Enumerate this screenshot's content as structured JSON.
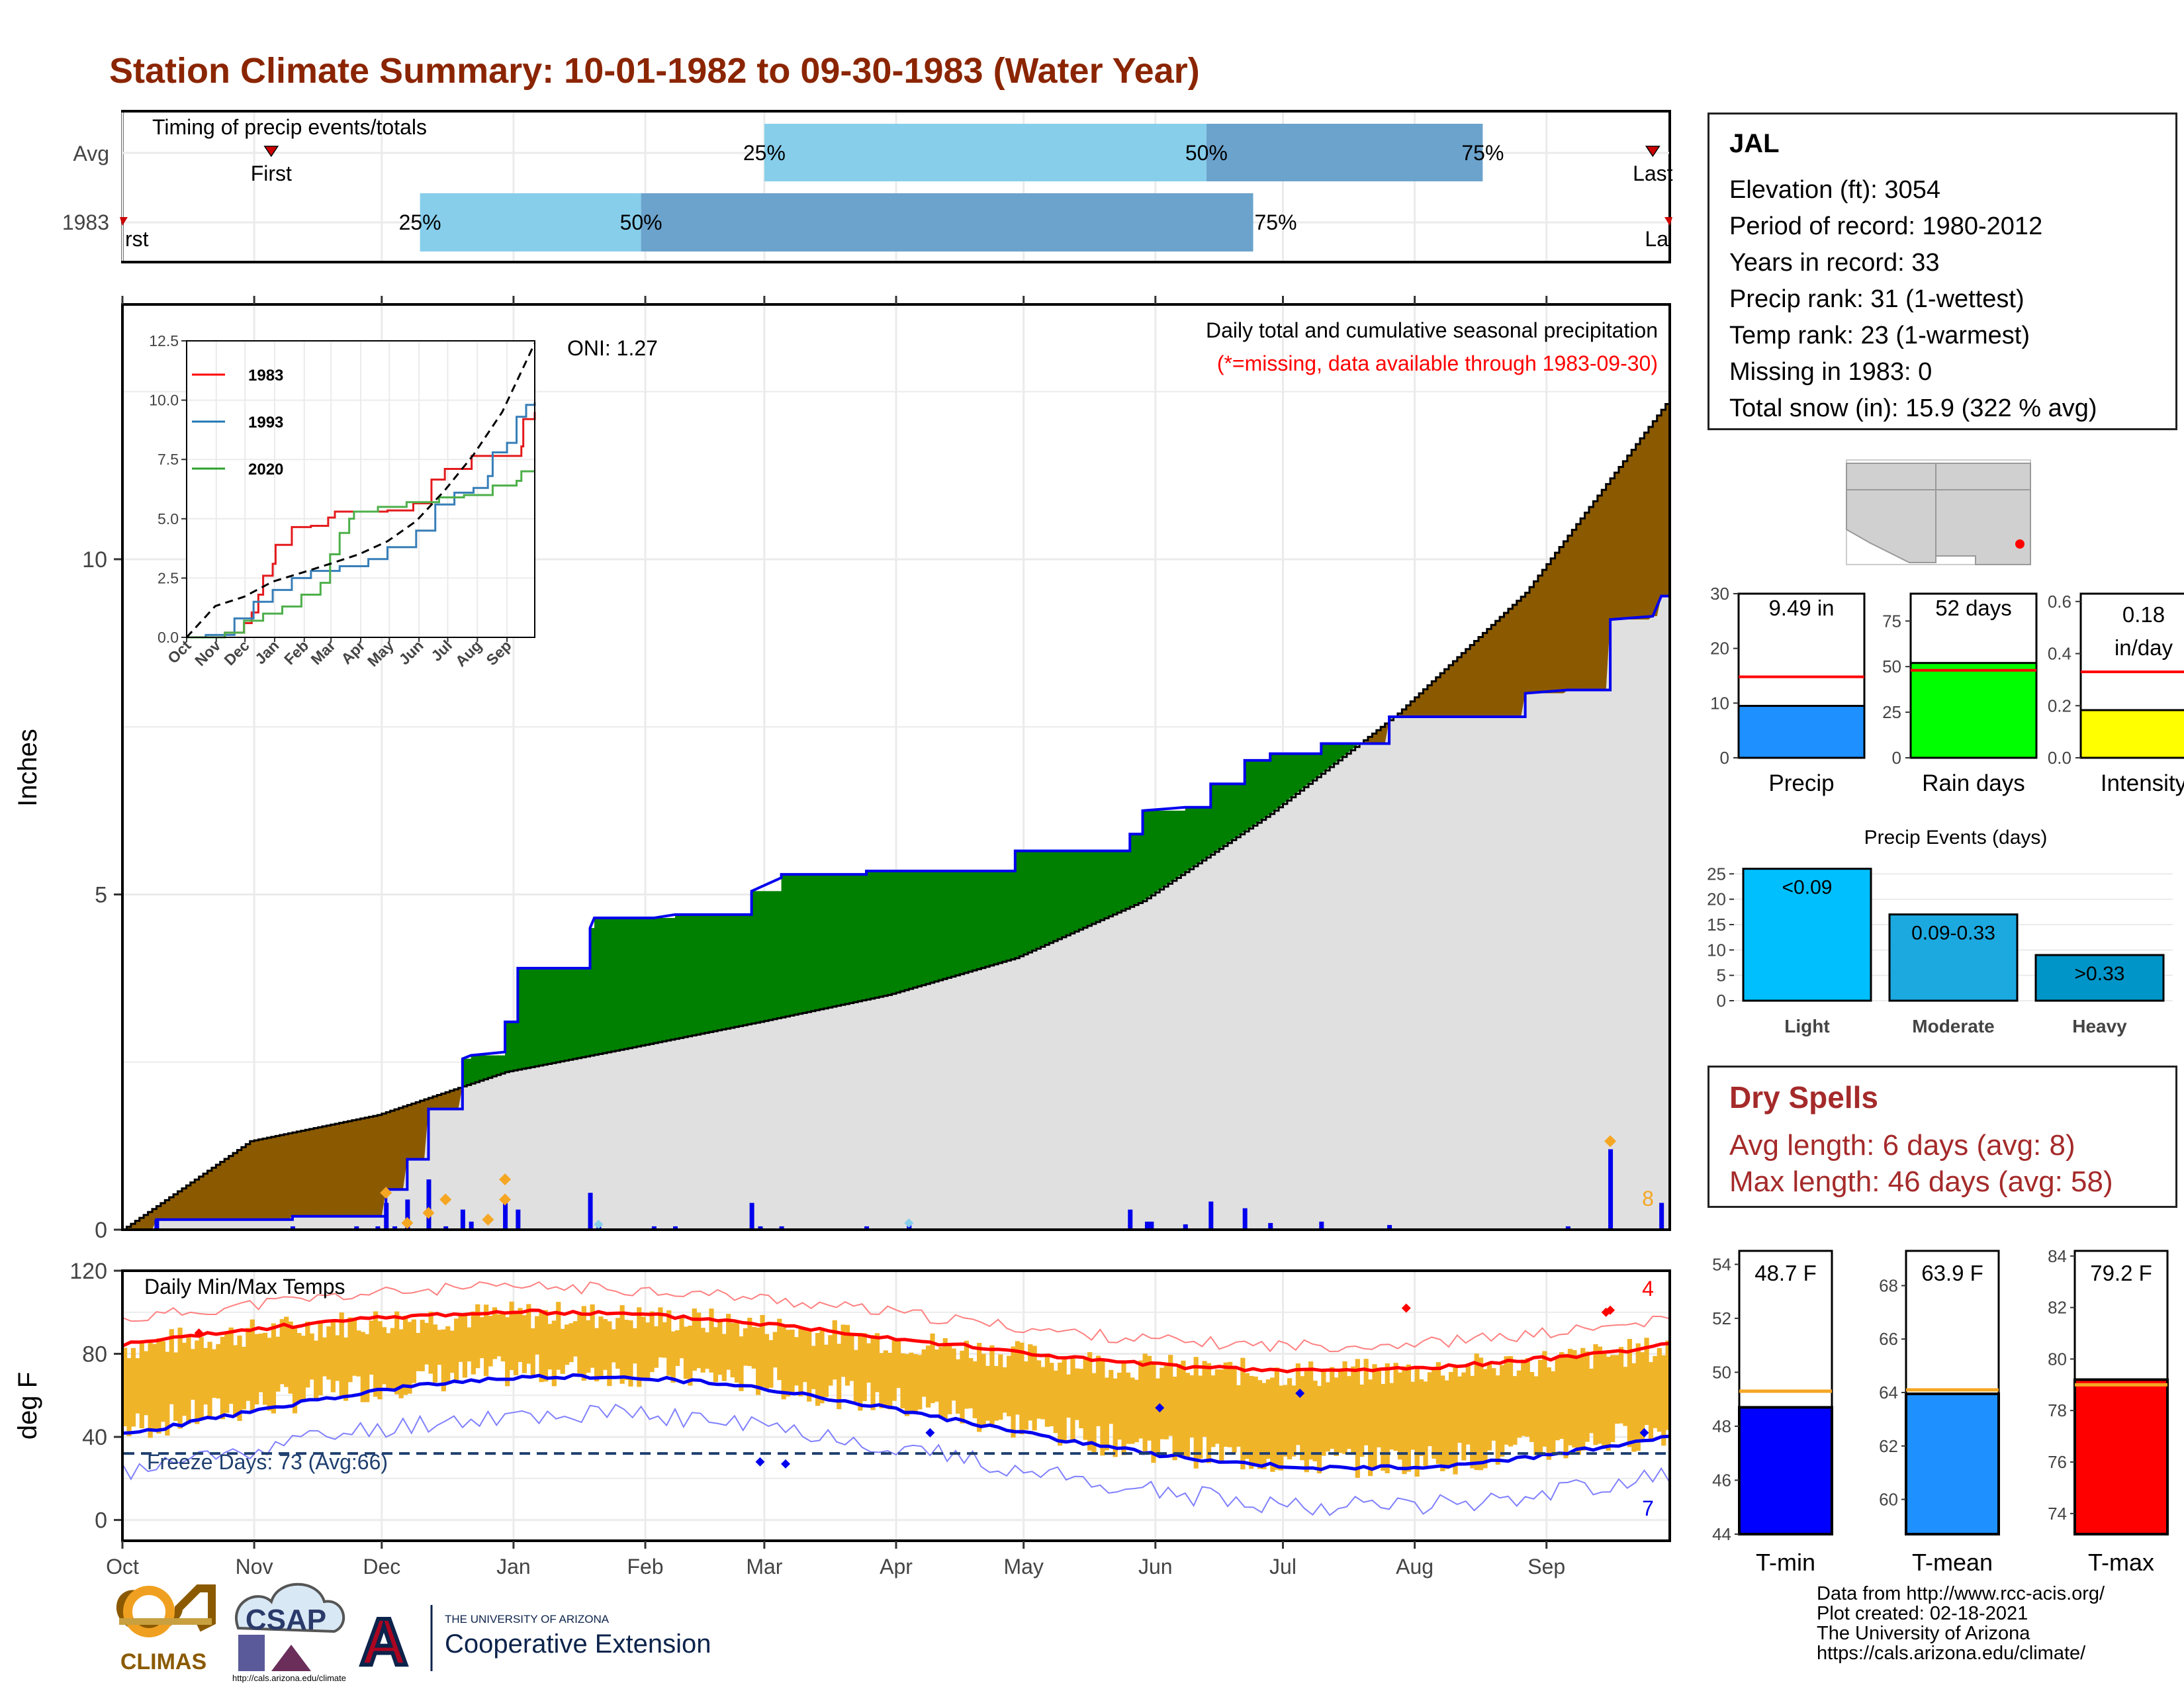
{
  "title": "Station Climate Summary: 10-01-1982 to 09-30-1983 (Water Year)",
  "colors": {
    "title": "#8b2500",
    "light_blue": "#87ceeb",
    "mid_blue": "#6ba3cc",
    "brown": "#8b5a00",
    "green": "#008000",
    "gray_fill": "#e0e0e0",
    "blue_line": "#0000ee",
    "orange": "#f5a623",
    "temp_bar": "#f0b429",
    "red": "#ff0000",
    "dry_red": "#a52a2a"
  },
  "timing": {
    "title": "Timing of precip events/totals",
    "rows": [
      "Avg",
      "1983"
    ],
    "avg": {
      "q25": "Mar 01",
      "q50": "Jun 13",
      "q75": "Aug 17",
      "first": "Nov 05",
      "last": "Sep 26"
    },
    "year": {
      "q25": "Dec 10",
      "q50": "Jan 31",
      "q75": "Jun 24",
      "first": "Oct 01",
      "last": "Sep 30"
    },
    "labels": {
      "q25": "25%",
      "q50": "50%",
      "q75": "75%",
      "first": "First",
      "last": "Last",
      "first_cut": "rst",
      "last_cut": "La"
    }
  },
  "months": [
    "Oct",
    "Nov",
    "Dec",
    "Jan",
    "Feb",
    "Mar",
    "Apr",
    "May",
    "Jun",
    "Jul",
    "Aug",
    "Sep"
  ],
  "precip": {
    "ylabel": "Inches",
    "yticks": [
      0,
      5,
      10
    ],
    "ylim": [
      0,
      13.8
    ],
    "oni": "ONI: 1.27",
    "subtitle": "Daily total and cumulative seasonal precipitation",
    "missing_note": "(*=missing, data available through 1983-09-30)",
    "corner_count": "8",
    "avg_cumulative": [
      [
        0,
        0
      ],
      [
        30,
        1.32
      ],
      [
        60,
        1.71
      ],
      [
        90,
        2.35
      ],
      [
        120,
        2.72
      ],
      [
        150,
        3.1
      ],
      [
        180,
        3.5
      ],
      [
        210,
        4.05
      ],
      [
        240,
        4.9
      ],
      [
        270,
        6.2
      ],
      [
        300,
        7.7
      ],
      [
        330,
        9.5
      ],
      [
        364,
        12.4
      ]
    ],
    "year_cumulative": [
      [
        0,
        0
      ],
      [
        8,
        0
      ],
      [
        8,
        0.15
      ],
      [
        40,
        0.15
      ],
      [
        40,
        0.2
      ],
      [
        62,
        0.2
      ],
      [
        62,
        0.6
      ],
      [
        67,
        0.6
      ],
      [
        67,
        1.05
      ],
      [
        72,
        1.05
      ],
      [
        72,
        1.8
      ],
      [
        80,
        1.8
      ],
      [
        80,
        2.55
      ],
      [
        82,
        2.6
      ],
      [
        90,
        2.65
      ],
      [
        90,
        3.1
      ],
      [
        93,
        3.1
      ],
      [
        93,
        3.9
      ],
      [
        110,
        3.9
      ],
      [
        110,
        4.5
      ],
      [
        111,
        4.65
      ],
      [
        125,
        4.65
      ],
      [
        130,
        4.7
      ],
      [
        148,
        4.7
      ],
      [
        148,
        5.05
      ],
      [
        155,
        5.25
      ],
      [
        155,
        5.3
      ],
      [
        175,
        5.3
      ],
      [
        175,
        5.35
      ],
      [
        210,
        5.35
      ],
      [
        210,
        5.65
      ],
      [
        237,
        5.65
      ],
      [
        237,
        5.9
      ],
      [
        240,
        5.9
      ],
      [
        240,
        6.25
      ],
      [
        250,
        6.3
      ],
      [
        256,
        6.3
      ],
      [
        256,
        6.65
      ],
      [
        264,
        6.65
      ],
      [
        264,
        7.0
      ],
      [
        270,
        7.0
      ],
      [
        270,
        7.1
      ],
      [
        282,
        7.1
      ],
      [
        282,
        7.25
      ],
      [
        298,
        7.25
      ],
      [
        298,
        7.65
      ],
      [
        330,
        7.65
      ],
      [
        330,
        8.0
      ],
      [
        340,
        8.05
      ],
      [
        350,
        8.05
      ],
      [
        350,
        9.1
      ],
      [
        360,
        9.15
      ],
      [
        362,
        9.45
      ],
      [
        364,
        9.45
      ]
    ],
    "daily_bars": [
      [
        8,
        0.15
      ],
      [
        40,
        0.05
      ],
      [
        55,
        0.05
      ],
      [
        60,
        0.05
      ],
      [
        62,
        0.4
      ],
      [
        64,
        0.05
      ],
      [
        67,
        0.45
      ],
      [
        72,
        0.75
      ],
      [
        76,
        0.05
      ],
      [
        80,
        0.3
      ],
      [
        82,
        0.12
      ],
      [
        90,
        0.5
      ],
      [
        93,
        0.3
      ],
      [
        110,
        0.55
      ],
      [
        112,
        0.05
      ],
      [
        125,
        0.05
      ],
      [
        130,
        0.05
      ],
      [
        148,
        0.4
      ],
      [
        150,
        0.05
      ],
      [
        155,
        0.05
      ],
      [
        175,
        0.05
      ],
      [
        185,
        0.1
      ],
      [
        237,
        0.3
      ],
      [
        241,
        0.12
      ],
      [
        242,
        0.12
      ],
      [
        250,
        0.08
      ],
      [
        256,
        0.42
      ],
      [
        264,
        0.32
      ],
      [
        270,
        0.1
      ],
      [
        282,
        0.12
      ],
      [
        298,
        0.07
      ],
      [
        340,
        0.05
      ],
      [
        350,
        1.2
      ],
      [
        362,
        0.4
      ]
    ],
    "orange_markers": [
      [
        62,
        0.55
      ],
      [
        67,
        0.1
      ],
      [
        72,
        0.25
      ],
      [
        76,
        0.45
      ],
      [
        86,
        0.15
      ],
      [
        90,
        0.75
      ],
      [
        90,
        0.45
      ]
    ],
    "light_markers": [
      [
        112,
        0.08
      ],
      [
        185,
        0.1
      ]
    ]
  },
  "inset": {
    "yticks": [
      "0.0",
      "2.5",
      "5.0",
      "7.5",
      "10.0",
      "12.5"
    ],
    "ylim": [
      0,
      12.5
    ],
    "months": [
      "Oct",
      "Nov",
      "Dec",
      "Jan",
      "Feb",
      "Mar",
      "Apr",
      "May",
      "Jun",
      "Jul",
      "Aug",
      "Sep"
    ],
    "legend": [
      {
        "name": "1983",
        "color": "#ff0000"
      },
      {
        "name": "1993",
        "color": "#1f77b4"
      },
      {
        "name": "2020",
        "color": "#2ca02c"
      }
    ],
    "series": [
      {
        "name": "1983",
        "color": "#e41a1c",
        "values": [
          [
            0,
            0
          ],
          [
            40,
            0.2
          ],
          [
            60,
            0.6
          ],
          [
            68,
            1.05
          ],
          [
            75,
            1.8
          ],
          [
            80,
            2.6
          ],
          [
            90,
            3.1
          ],
          [
            93,
            3.9
          ],
          [
            110,
            4.65
          ],
          [
            130,
            4.7
          ],
          [
            148,
            5.05
          ],
          [
            155,
            5.3
          ],
          [
            210,
            5.35
          ],
          [
            237,
            5.65
          ],
          [
            256,
            6.65
          ],
          [
            270,
            7.1
          ],
          [
            298,
            7.65
          ],
          [
            350,
            8.05
          ],
          [
            352,
            9.2
          ],
          [
            364,
            9.5
          ]
        ]
      },
      {
        "name": "1993",
        "color": "#377eb8",
        "values": [
          [
            0,
            0
          ],
          [
            20,
            0.1
          ],
          [
            50,
            0.8
          ],
          [
            70,
            1.5
          ],
          [
            90,
            2.0
          ],
          [
            110,
            2.5
          ],
          [
            130,
            2.8
          ],
          [
            160,
            3.0
          ],
          [
            190,
            3.3
          ],
          [
            210,
            3.8
          ],
          [
            240,
            4.5
          ],
          [
            260,
            5.6
          ],
          [
            280,
            6.1
          ],
          [
            300,
            6.3
          ],
          [
            315,
            6.8
          ],
          [
            320,
            7.8
          ],
          [
            335,
            8.2
          ],
          [
            345,
            9.3
          ],
          [
            355,
            9.8
          ],
          [
            364,
            9.9
          ]
        ]
      },
      {
        "name": "2020",
        "color": "#4daf4a",
        "values": [
          [
            0,
            0
          ],
          [
            40,
            0.2
          ],
          [
            60,
            0.7
          ],
          [
            80,
            1.0
          ],
          [
            100,
            1.3
          ],
          [
            120,
            1.8
          ],
          [
            140,
            2.3
          ],
          [
            150,
            3.5
          ],
          [
            160,
            4.4
          ],
          [
            170,
            5.0
          ],
          [
            175,
            5.3
          ],
          [
            200,
            5.5
          ],
          [
            230,
            5.7
          ],
          [
            264,
            5.9
          ],
          [
            290,
            6.0
          ],
          [
            320,
            6.4
          ],
          [
            345,
            6.6
          ],
          [
            350,
            7.0
          ],
          [
            364,
            7.0
          ]
        ]
      },
      {
        "name": "Avg",
        "color": "#000000",
        "values": [
          [
            0,
            0
          ],
          [
            30,
            1.32
          ],
          [
            60,
            1.71
          ],
          [
            90,
            2.35
          ],
          [
            120,
            2.72
          ],
          [
            150,
            3.1
          ],
          [
            180,
            3.5
          ],
          [
            210,
            4.05
          ],
          [
            240,
            4.9
          ],
          [
            270,
            6.2
          ],
          [
            300,
            7.7
          ],
          [
            330,
            9.5
          ],
          [
            364,
            12.4
          ]
        ]
      }
    ]
  },
  "station": {
    "name": "JAL",
    "elevation": "Elevation (ft): 3054",
    "period": "Period of record: 1980-2012",
    "years": "Years in record: 33",
    "precip_rank": "Precip rank: 31 (1-wettest)",
    "temp_rank": "Temp rank: 23 (1-warmest)",
    "missing": "Missing in 1983: 0",
    "snow": "Total snow (in): 15.9 (322 % avg)"
  },
  "mini_bars": [
    {
      "label": "Precip",
      "value_text": "9.49 in",
      "value": 9.49,
      "avg": 14.8,
      "ymax": 30,
      "ticks": [
        "0",
        "10",
        "20",
        "30"
      ],
      "tick_values": [
        0,
        10,
        20,
        30
      ],
      "color": "#1e90ff"
    },
    {
      "label": "Rain days",
      "value_text": "52 days",
      "value": 52,
      "avg": 48,
      "ymax": 90,
      "ticks": [
        "0",
        "25",
        "50",
        "75"
      ],
      "tick_values": [
        0,
        25,
        50,
        75
      ],
      "color": "#00ff00"
    },
    {
      "label": "Intensity",
      "value_text": "0.18",
      "value_text2": "in/day",
      "value": 0.183,
      "avg": 0.33,
      "ymax": 0.63,
      "ticks": [
        "0.0",
        "0.2",
        "0.4",
        "0.6"
      ],
      "tick_values": [
        0,
        0.2,
        0.4,
        0.6
      ],
      "color": "#ffff00"
    }
  ],
  "events": {
    "title": "Precip Events (days)",
    "categories": [
      "Light",
      "Moderate",
      "Heavy"
    ],
    "labels": [
      "<0.09",
      "0.09-0.33",
      ">0.33"
    ],
    "values": [
      26,
      17,
      9
    ],
    "colors": [
      "#00bfff",
      "#1ca9e0",
      "#0095c8"
    ],
    "yticks": [
      0,
      5,
      10,
      15,
      20,
      25
    ],
    "ymax": 27
  },
  "dry_spells": {
    "title": "Dry Spells",
    "avg": "Avg length: 6 days (avg: 8)",
    "max": "Max length: 46 days (avg: 58)"
  },
  "temps": {
    "title": "Daily Min/Max Temps",
    "ylabel": "deg F",
    "yticks": [
      0,
      40,
      80,
      120
    ],
    "ylim": [
      -10,
      120
    ],
    "freeze_label": "Freeze Days: 73 (Avg:66)",
    "freeze_line": 32,
    "count_hot": "4",
    "count_cold": "7"
  },
  "temp_bars": [
    {
      "label": "T-min",
      "value_text": "48.7 F",
      "value": 48.7,
      "avg": 49.3,
      "ymin": 44,
      "ymax": 54.5,
      "ticks": [
        "44",
        "46",
        "48",
        "50",
        "52",
        "54"
      ],
      "tick_values": [
        44,
        46,
        48,
        50,
        52,
        54
      ],
      "color": "#0000ff"
    },
    {
      "label": "T-mean",
      "value_text": "63.9 F",
      "value": 63.95,
      "avg": 64.1,
      "ymin": 58.7,
      "ymax": 69.3,
      "ticks": [
        "60",
        "62",
        "64",
        "66",
        "68"
      ],
      "tick_values": [
        60,
        62,
        64,
        66,
        68
      ],
      "color": "#1e90ff"
    },
    {
      "label": "T-max",
      "value_text": "79.2 F",
      "value": 79.2,
      "avg": 79.0,
      "ymin": 73.2,
      "ymax": 84.2,
      "ticks": [
        "74",
        "76",
        "78",
        "80",
        "82",
        "84"
      ],
      "tick_values": [
        74,
        76,
        78,
        80,
        82,
        84
      ],
      "color": "#ff0000"
    }
  ],
  "footer": {
    "line1": "Data from http://www.rcc-acis.org/",
    "line2": "Plot created: 02-18-2021",
    "line3": "The University of Arizona",
    "line4": "https://cals.arizona.edu/climate/"
  },
  "logos": {
    "climas": "CLIMAS",
    "csap": "CSAP",
    "csap_url": "http://cals.arizona.edu/climate",
    "ua_small": "THE UNIVERSITY OF ARIZONA",
    "ua_big": "Cooperative Extension",
    "ua_letter": "A"
  }
}
